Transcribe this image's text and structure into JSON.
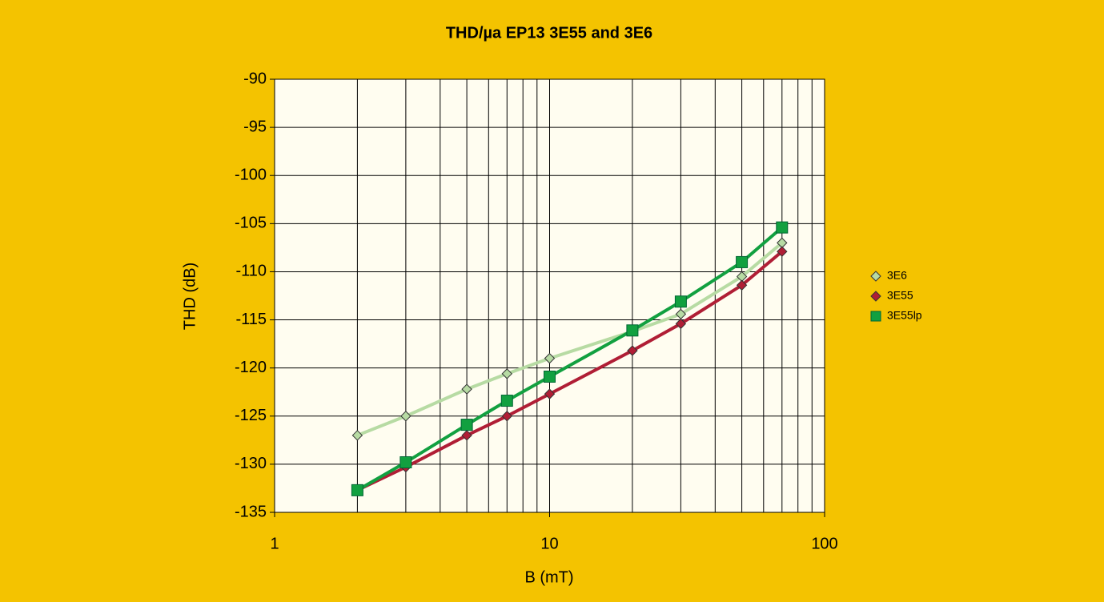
{
  "chart_data": {
    "type": "line",
    "title": "THD/µa EP13 3E55 and 3E6",
    "x_label": "B (mT)",
    "y_label": "THD (dB)",
    "x": [
      2,
      3,
      5,
      7,
      10,
      20,
      30,
      50,
      70
    ],
    "series": [
      {
        "name": "3E6",
        "color": "#b7dba3",
        "marker": "diamond",
        "values": [
          -127.0,
          -125.0,
          -122.2,
          -120.6,
          -119.0,
          -116.2,
          -114.4,
          -110.5,
          -107.0
        ]
      },
      {
        "name": "3E55",
        "color": "#b01e35",
        "marker": "diamond",
        "values": [
          -132.7,
          -130.3,
          -127.0,
          -125.0,
          -122.7,
          -118.2,
          -115.4,
          -111.4,
          -107.9
        ]
      },
      {
        "name": "3E55lp",
        "color": "#12a040",
        "marker": "square",
        "values": [
          -132.7,
          -129.8,
          -125.9,
          -123.4,
          -120.9,
          -116.1,
          -113.1,
          -109.0,
          -105.4
        ]
      }
    ],
    "xlog": true,
    "xlim": [
      1,
      100
    ],
    "xticks": [
      1,
      10,
      100
    ],
    "xminorticks": [
      2,
      3,
      4,
      5,
      6,
      7,
      8,
      9,
      20,
      30,
      40,
      50,
      60,
      70,
      80,
      90
    ],
    "ylim": [
      -135,
      -90
    ],
    "yticks": [
      -135,
      -130,
      -125,
      -120,
      -115,
      -110,
      -105,
      -100,
      -95,
      -90
    ],
    "grid": true,
    "legend": "right"
  }
}
